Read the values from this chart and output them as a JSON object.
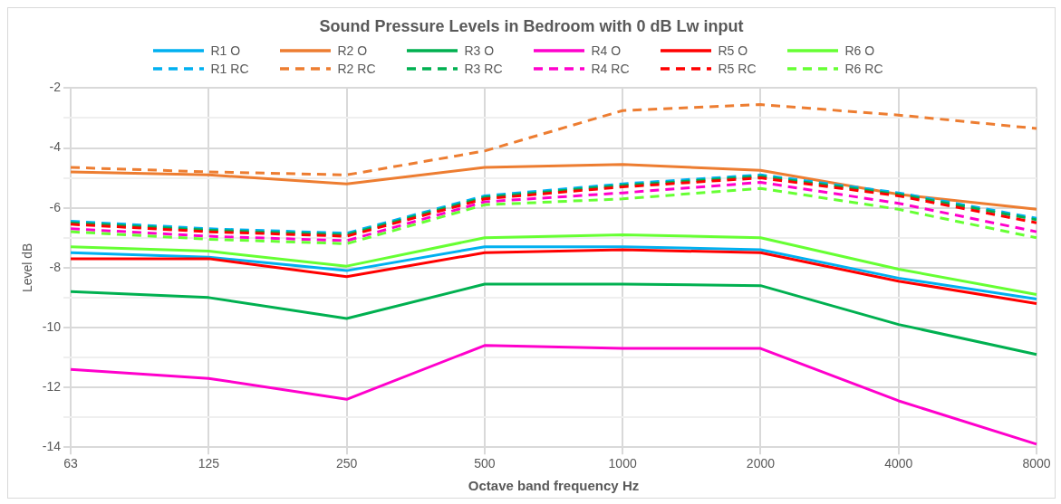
{
  "chart_data": {
    "type": "line",
    "title": "Sound Pressure Levels in Bedroom with 0 dB Lw input",
    "xlabel": "Octave band frequency Hz",
    "ylabel": "Level dB",
    "categories": [
      "63",
      "125",
      "250",
      "500",
      "1000",
      "2000",
      "4000",
      "8000"
    ],
    "ylim": [
      -14,
      -2
    ],
    "yticks": [
      -14,
      {
        "value": -13,
        "label": null
      },
      -12,
      {
        "value": -11,
        "label": null
      },
      -10,
      {
        "value": -9,
        "label": null
      },
      -8,
      {
        "value": -7,
        "label": null
      },
      -6,
      {
        "value": -5,
        "label": null
      },
      -4,
      {
        "value": -3,
        "label": null
      },
      -2
    ],
    "grid": true,
    "legend": "top",
    "marker": "none",
    "series": [
      {
        "name": "R1 O",
        "color": "#00b0f0",
        "line_style": "solid",
        "values": [
          -7.5,
          -7.65,
          -8.1,
          -7.3,
          -7.3,
          -7.4,
          -8.35,
          -9.05
        ]
      },
      {
        "name": "R2 O",
        "color": "#ed7d31",
        "line_style": "solid",
        "values": [
          -4.8,
          -4.9,
          -5.2,
          -4.65,
          -4.55,
          -4.75,
          -5.55,
          -6.05
        ]
      },
      {
        "name": "R3 O",
        "color": "#00b050",
        "line_style": "solid",
        "values": [
          -8.8,
          -9.0,
          -9.7,
          -8.55,
          -8.55,
          -8.6,
          -9.9,
          -10.9
        ]
      },
      {
        "name": "R4 O",
        "color": "#ff00cc",
        "line_style": "solid",
        "values": [
          -11.4,
          -11.7,
          -12.4,
          -10.6,
          -10.7,
          -10.7,
          -12.45,
          -13.9
        ]
      },
      {
        "name": "R5 O",
        "color": "#ff0000",
        "line_style": "solid",
        "values": [
          -7.7,
          -7.7,
          -8.3,
          -7.5,
          -7.4,
          -7.5,
          -8.45,
          -9.2
        ]
      },
      {
        "name": "R6 O",
        "color": "#66ff33",
        "line_style": "solid",
        "values": [
          -7.3,
          -7.45,
          -7.95,
          -7.0,
          -6.9,
          -7.0,
          -8.05,
          -8.9
        ]
      },
      {
        "name": "R1 RC",
        "color": "#00b0f0",
        "line_style": "dashed",
        "values": [
          -6.45,
          -6.7,
          -6.85,
          -5.6,
          -5.2,
          -4.9,
          -5.5,
          -6.35
        ]
      },
      {
        "name": "R2 RC",
        "color": "#ed7d31",
        "line_style": "dashed",
        "values": [
          -4.65,
          -4.8,
          -4.9,
          -4.1,
          -2.75,
          -2.55,
          -2.9,
          -3.35
        ]
      },
      {
        "name": "R3 RC",
        "color": "#00b050",
        "line_style": "dashed",
        "values": [
          -6.5,
          -6.75,
          -6.9,
          -5.65,
          -5.25,
          -4.95,
          -5.55,
          -6.4
        ]
      },
      {
        "name": "R4 RC",
        "color": "#ff00cc",
        "line_style": "dashed",
        "values": [
          -6.7,
          -6.95,
          -7.1,
          -5.8,
          -5.5,
          -5.15,
          -5.85,
          -6.8
        ]
      },
      {
        "name": "R5 RC",
        "color": "#ff0000",
        "line_style": "dashed",
        "values": [
          -6.55,
          -6.8,
          -6.95,
          -5.7,
          -5.3,
          -5.0,
          -5.6,
          -6.5
        ]
      },
      {
        "name": "R6 RC",
        "color": "#66ff33",
        "line_style": "dashed",
        "values": [
          -6.8,
          -7.05,
          -7.2,
          -5.9,
          -5.7,
          -5.35,
          -6.05,
          -7.0
        ]
      }
    ]
  }
}
